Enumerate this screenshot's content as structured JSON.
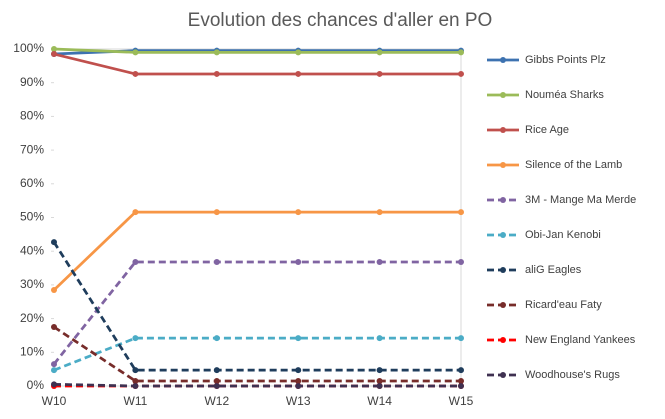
{
  "chart_data": {
    "type": "line",
    "title": "Evolution des chances d'aller en PO",
    "categories": [
      "W10",
      "W11",
      "W12",
      "W13",
      "W14",
      "W15"
    ],
    "ylim": [
      0,
      100
    ],
    "yticks": [
      {
        "value": 0,
        "label": "0%"
      },
      {
        "value": 10,
        "label": "10%"
      },
      {
        "value": 20,
        "label": "20%"
      },
      {
        "value": 30,
        "label": "30%"
      },
      {
        "value": 40,
        "label": "40%"
      },
      {
        "value": 50,
        "label": "50%"
      },
      {
        "value": 60,
        "label": "60%"
      },
      {
        "value": 70,
        "label": "70%"
      },
      {
        "value": 80,
        "label": "80%"
      },
      {
        "value": 90,
        "label": "90%"
      },
      {
        "value": 100,
        "label": "100%"
      }
    ],
    "grid": false,
    "legend": "right",
    "series": [
      {
        "name": "Gibbs Points Plz",
        "color": "#3d72b0",
        "style": "solid",
        "values": [
          98.5,
          99.5,
          99.5,
          99.5,
          99.5,
          99.5
        ]
      },
      {
        "name": "Nouméa Sharks",
        "color": "#9bbb59",
        "style": "solid",
        "values": [
          100,
          99,
          99,
          99,
          99,
          99
        ]
      },
      {
        "name": "Rice Age",
        "color": "#c0504d",
        "style": "solid",
        "values": [
          98.5,
          92.6,
          92.6,
          92.6,
          92.6,
          92.6
        ]
      },
      {
        "name": "Silence of the Lamb",
        "color": "#f79646",
        "style": "solid",
        "values": [
          28.5,
          51.6,
          51.6,
          51.6,
          51.6,
          51.6
        ]
      },
      {
        "name": "3M - Mange Ma Merde",
        "color": "#8064a2",
        "style": "dashed",
        "values": [
          6.5,
          36.8,
          36.8,
          36.8,
          36.8,
          36.8
        ]
      },
      {
        "name": "Obi-Jan Kenobi",
        "color": "#4bacc6",
        "style": "dashed",
        "values": [
          4.7,
          14.2,
          14.2,
          14.2,
          14.2,
          14.2
        ]
      },
      {
        "name": "aliG Eagles",
        "color": "#1f3d5c",
        "style": "dashed",
        "values": [
          42.7,
          4.7,
          4.7,
          4.7,
          4.7,
          4.7
        ]
      },
      {
        "name": "Ricard'eau Faty",
        "color": "#772c2a",
        "style": "dashed",
        "values": [
          17.5,
          1.5,
          1.5,
          1.5,
          1.5,
          1.5
        ]
      },
      {
        "name": "New England Yankees",
        "color": "#ff0000",
        "style": "dashed",
        "values": [
          0,
          0,
          0,
          0,
          0,
          0
        ]
      },
      {
        "name": "Woodhouse's Rugs",
        "color": "#3f3151",
        "style": "dashed",
        "values": [
          0.5,
          0,
          0,
          0,
          0,
          0
        ]
      }
    ]
  }
}
